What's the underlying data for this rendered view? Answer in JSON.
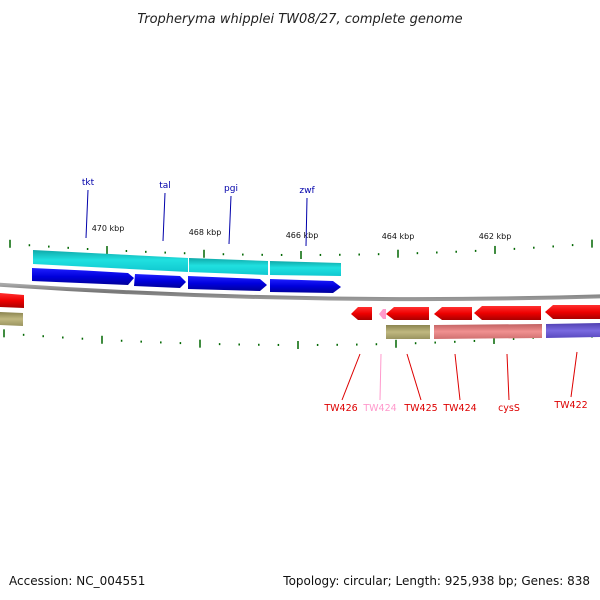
{
  "title": "Tropheryma whipplei TW08/27, complete genome",
  "footer": {
    "accession": "Accession: NC_004551",
    "summary": "Topology: circular; Length: 925,938 bp; Genes: 838"
  },
  "scale_labels": [
    "470 kbp",
    "468 kbp",
    "466 kbp",
    "464 kbp",
    "462 kbp"
  ],
  "top_genes": [
    "tkt",
    "tal",
    "pgi",
    "zwf"
  ],
  "bottom_genes": [
    "TW426",
    "TW424",
    "TW425",
    "TW424",
    "cysS",
    "TW422"
  ],
  "colors": {
    "backbone": "#888888",
    "cds_forward": "#0000ee",
    "cds_forward_light": "#18d0d8",
    "cds_reverse": "#ff0000",
    "cds_reverse_light": "#e88080",
    "olive": "#b0a86a",
    "purple": "#7060d0",
    "pink": "#ff99cc",
    "tick": "#006600"
  }
}
